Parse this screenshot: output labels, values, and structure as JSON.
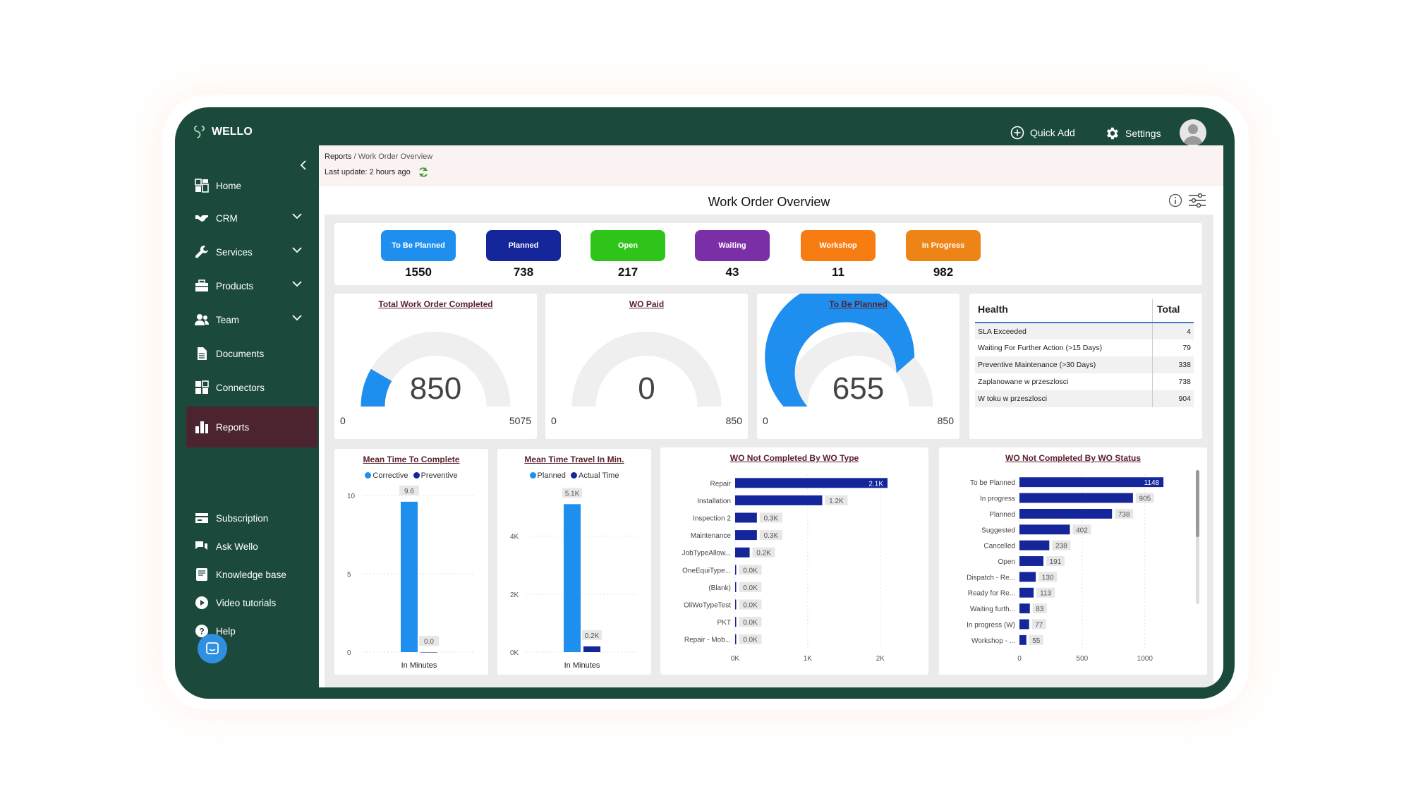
{
  "app": {
    "name": "WELLO"
  },
  "topbar": {
    "quick_add": "Quick Add",
    "settings": "Settings"
  },
  "sidebar": {
    "items": [
      {
        "label": "Home",
        "icon": "home-icon"
      },
      {
        "label": "CRM",
        "icon": "handshake-icon",
        "expandable": true
      },
      {
        "label": "Services",
        "icon": "wrench-icon",
        "expandable": true
      },
      {
        "label": "Products",
        "icon": "box-icon",
        "expandable": true
      },
      {
        "label": "Team",
        "icon": "users-icon",
        "expandable": true
      },
      {
        "label": "Documents",
        "icon": "document-icon"
      },
      {
        "label": "Connectors",
        "icon": "grid-icon"
      },
      {
        "label": "Reports",
        "icon": "bar-chart-icon",
        "active": true
      }
    ],
    "bottom_items": [
      {
        "label": "Subscription",
        "icon": "card-icon"
      },
      {
        "label": "Ask Wello",
        "icon": "chat-icon"
      },
      {
        "label": "Knowledge base",
        "icon": "book-icon"
      },
      {
        "label": "Video tutorials",
        "icon": "play-icon"
      },
      {
        "label": "Help",
        "icon": "help-icon"
      }
    ]
  },
  "breadcrumb": {
    "root": "Reports",
    "separator": " / ",
    "current": "Work Order Overview",
    "last_update": "Last update: 2 hours ago"
  },
  "page": {
    "title": "Work Order Overview"
  },
  "status_cards": [
    {
      "label": "To Be Planned",
      "value": "1550",
      "color": "#1e8fef"
    },
    {
      "label": "Planned",
      "value": "738",
      "color": "#15259a"
    },
    {
      "label": "Open",
      "value": "217",
      "color": "#2ec41a"
    },
    {
      "label": "Waiting",
      "value": "43",
      "color": "#7a2fa6"
    },
    {
      "label": "Workshop",
      "value": "11",
      "color": "#f77d12"
    },
    {
      "label": "In Progress",
      "value": "982",
      "color": "#ee8416"
    }
  ],
  "gauges": [
    {
      "title": "Total Work Order Completed",
      "value": "850",
      "min": "0",
      "max": "5075",
      "fraction": 0.1675
    },
    {
      "title": "WO Paid",
      "value": "0",
      "min": "0",
      "max": "850",
      "fraction": 0
    },
    {
      "title": "To Be Planned",
      "value": "655",
      "min": "0",
      "max": "850",
      "fraction": 0.7706
    }
  ],
  "health_table": {
    "headers": [
      "Health",
      "Total"
    ],
    "rows": [
      {
        "label": "SLA Exceeded",
        "value": "4"
      },
      {
        "label": "Waiting For Further Action (>15 Days)",
        "value": "79"
      },
      {
        "label": "Preventive Maintenance (>30 Days)",
        "value": "338"
      },
      {
        "label": "Zaplanowane w przeszlosci",
        "value": "738"
      },
      {
        "label": "W toku w przeszlosci",
        "value": "904"
      }
    ]
  },
  "chart_data": [
    {
      "type": "bar",
      "title": "Mean Time To Complete",
      "categories": [
        "In Minutes"
      ],
      "series": [
        {
          "name": "Corrective",
          "values": [
            9.6
          ],
          "labels": [
            "9.6"
          ],
          "color": "#1e8fef"
        },
        {
          "name": "Preventive",
          "values": [
            0.0
          ],
          "labels": [
            "0.0"
          ],
          "color": "#15259a"
        }
      ],
      "yticks": [
        "10",
        "5",
        "0"
      ],
      "ylim": [
        0,
        10
      ]
    },
    {
      "type": "bar",
      "title": "Mean Time Travel In Min.",
      "categories": [
        "In Minutes"
      ],
      "series": [
        {
          "name": "Planned",
          "values": [
            5100
          ],
          "labels": [
            "5.1K"
          ],
          "color": "#1e8fef"
        },
        {
          "name": "Actual Time",
          "values": [
            200
          ],
          "labels": [
            "0.2K"
          ],
          "color": "#15259a"
        }
      ],
      "yticks": [
        "4K",
        "2K",
        "0K"
      ],
      "ylim": [
        0,
        5400
      ]
    },
    {
      "type": "bar",
      "orientation": "horizontal",
      "title": "WO Not Completed By WO Type",
      "categories": [
        "Repair",
        "Installation",
        "Inspection 2",
        "Maintenance",
        "JobTypeAllow...",
        "OneEquiType...",
        "(Blank)",
        "OliWoTypeTest",
        "PKT",
        "Repair - Mob..."
      ],
      "values": [
        2100,
        1200,
        300,
        300,
        200,
        0,
        0,
        0,
        0,
        0
      ],
      "labels": [
        "2.1K",
        "1.2K",
        "0.3K",
        "0.3K",
        "0.2K",
        "0.0K",
        "0.0K",
        "0.0K",
        "0.0K",
        "0.0K"
      ],
      "xticks": [
        "0K",
        "1K",
        "2K"
      ],
      "xlim": [
        0,
        2100
      ],
      "color": "#15259a"
    },
    {
      "type": "bar",
      "orientation": "horizontal",
      "title": "WO Not Completed By WO Status",
      "categories": [
        "To be Planned",
        "In progress",
        "Planned",
        "Suggested",
        "Cancelled",
        "Open",
        "Dispatch - Re...",
        "Ready for Re...",
        "Waiting furth...",
        "In progress (W)",
        "Workshop - ..."
      ],
      "values": [
        1148,
        905,
        738,
        402,
        238,
        191,
        130,
        113,
        83,
        77,
        55
      ],
      "labels": [
        "1148",
        "905",
        "738",
        "402",
        "238",
        "191",
        "130",
        "113",
        "83",
        "77",
        "55"
      ],
      "xticks": [
        "0",
        "500",
        "1000"
      ],
      "xlim": [
        0,
        1170
      ],
      "color": "#15259a"
    }
  ]
}
